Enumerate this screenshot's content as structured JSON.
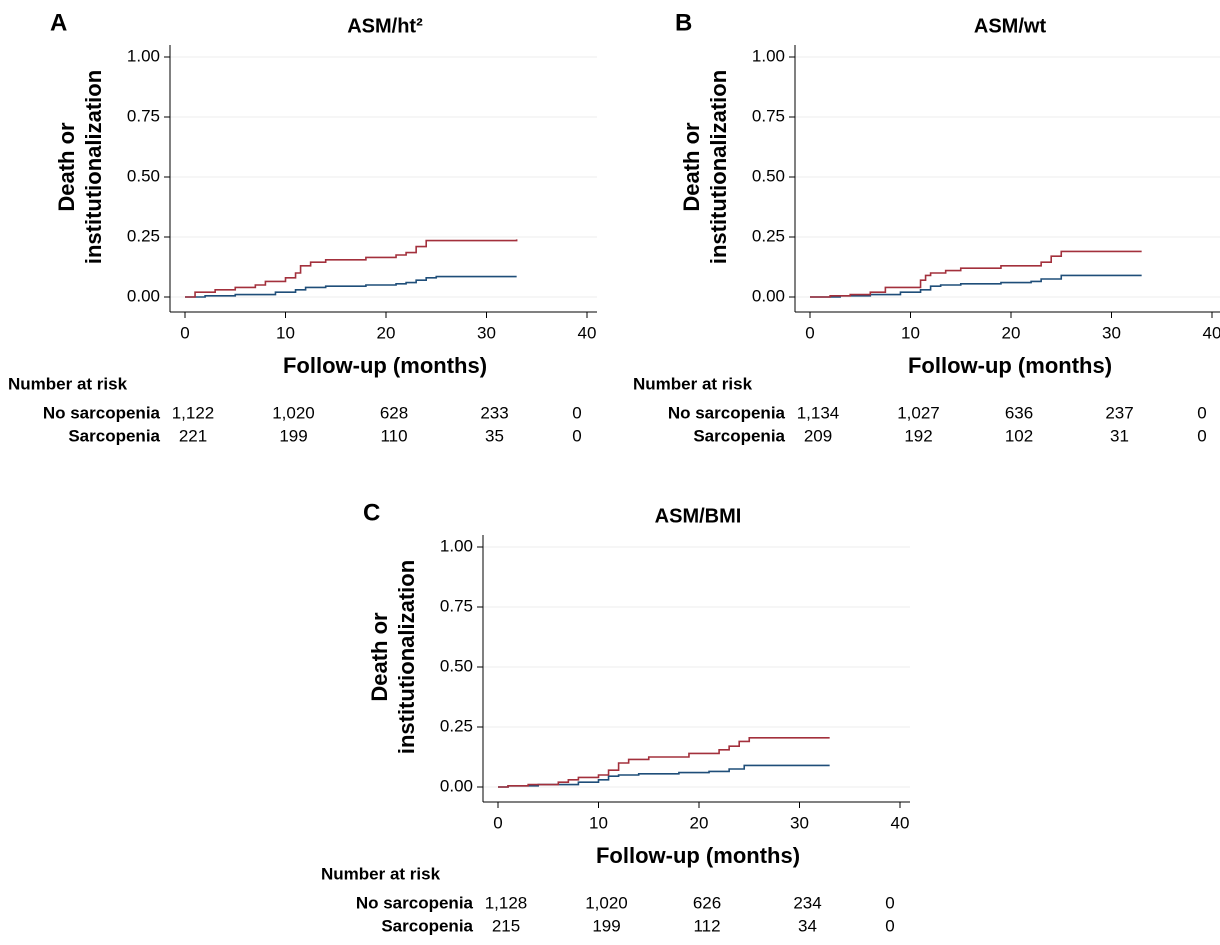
{
  "chart_data": [
    {
      "type": "line",
      "step": "post",
      "panel_label": "A",
      "title": "ASM/ht²",
      "ylabel": [
        "Death or",
        "institutionalization"
      ],
      "xlabel": "Follow-up (months)",
      "xlim": [
        0,
        40
      ],
      "xticks": [
        0,
        10,
        20,
        30,
        40
      ],
      "ylim": [
        0,
        1
      ],
      "yticks": [
        {
          "value": 0,
          "label": "0.00"
        },
        {
          "value": 0.25,
          "label": "0.25"
        },
        {
          "value": 0.5,
          "label": "0.50"
        },
        {
          "value": 0.75,
          "label": "0.75"
        },
        {
          "value": 1,
          "label": "1.00"
        }
      ],
      "grid": true,
      "risk_title": "Number at risk",
      "series": [
        {
          "name": "No sarcopenia",
          "color": "#1f4e79",
          "x": [
            0,
            2,
            5,
            9,
            11,
            12,
            14,
            18,
            21,
            22,
            23,
            24,
            25,
            33
          ],
          "values": [
            0,
            0.005,
            0.01,
            0.02,
            0.03,
            0.04,
            0.045,
            0.05,
            0.055,
            0.06,
            0.07,
            0.08,
            0.085,
            0.085
          ],
          "at_risk": [
            1122,
            1020,
            628,
            233,
            0
          ],
          "at_risk_labels": [
            "1,122",
            "1,020",
            "628",
            "233",
            "0"
          ]
        },
        {
          "name": "Sarcopenia",
          "color": "#a3303c",
          "x": [
            0,
            1,
            3,
            5,
            7,
            8,
            10,
            11,
            11.5,
            12.5,
            14,
            18,
            21,
            22,
            23,
            24,
            33
          ],
          "values": [
            0,
            0.02,
            0.03,
            0.04,
            0.05,
            0.065,
            0.08,
            0.1,
            0.13,
            0.145,
            0.155,
            0.165,
            0.175,
            0.185,
            0.21,
            0.235,
            0.24
          ],
          "at_risk": [
            221,
            199,
            110,
            35,
            0
          ]
        }
      ]
    },
    {
      "type": "line",
      "step": "post",
      "panel_label": "B",
      "title": "ASM/wt",
      "ylabel": [
        "Death or",
        "institutionalization"
      ],
      "xlabel": "Follow-up (months)",
      "xlim": [
        0,
        40
      ],
      "xticks": [
        0,
        10,
        20,
        30,
        40
      ],
      "ylim": [
        0,
        1
      ],
      "yticks": [
        {
          "value": 0,
          "label": "0.00"
        },
        {
          "value": 0.25,
          "label": "0.25"
        },
        {
          "value": 0.5,
          "label": "0.50"
        },
        {
          "value": 0.75,
          "label": "0.75"
        },
        {
          "value": 1,
          "label": "1.00"
        }
      ],
      "grid": true,
      "risk_title": "Number at risk",
      "series": [
        {
          "name": "No sarcopenia",
          "color": "#1f4e79",
          "x": [
            0,
            3,
            6,
            9,
            11,
            12,
            13,
            15,
            19,
            22,
            23,
            25,
            33
          ],
          "values": [
            0,
            0.005,
            0.01,
            0.02,
            0.03,
            0.045,
            0.05,
            0.055,
            0.06,
            0.065,
            0.075,
            0.09,
            0.09
          ],
          "at_risk": [
            1134,
            1027,
            636,
            237,
            0
          ],
          "at_risk_labels": [
            "1,134",
            "1,027",
            "636",
            "237",
            "0"
          ]
        },
        {
          "name": "Sarcopenia",
          "color": "#a3303c",
          "x": [
            0,
            2,
            4,
            6,
            7.5,
            11,
            11.5,
            12,
            13.5,
            15,
            19,
            23,
            24,
            25,
            33
          ],
          "values": [
            0,
            0.005,
            0.01,
            0.02,
            0.04,
            0.07,
            0.09,
            0.1,
            0.11,
            0.12,
            0.13,
            0.145,
            0.17,
            0.19,
            0.19
          ],
          "at_risk": [
            209,
            192,
            102,
            31,
            0
          ]
        }
      ]
    },
    {
      "type": "line",
      "step": "post",
      "panel_label": "C",
      "title": "ASM/BMI",
      "ylabel": [
        "Death or",
        "institutionalization"
      ],
      "xlabel": "Follow-up (months)",
      "xlim": [
        0,
        40
      ],
      "xticks": [
        0,
        10,
        20,
        30,
        40
      ],
      "ylim": [
        0,
        1
      ],
      "yticks": [
        {
          "value": 0,
          "label": "0.00"
        },
        {
          "value": 0.25,
          "label": "0.25"
        },
        {
          "value": 0.5,
          "label": "0.50"
        },
        {
          "value": 0.75,
          "label": "0.75"
        },
        {
          "value": 1,
          "label": "1.00"
        }
      ],
      "grid": true,
      "risk_title": "Number at risk",
      "series": [
        {
          "name": "No sarcopenia",
          "color": "#1f4e79",
          "x": [
            0,
            1,
            4,
            8,
            10,
            11,
            12,
            14,
            18,
            21,
            23,
            24.5,
            33
          ],
          "values": [
            0,
            0.005,
            0.01,
            0.02,
            0.03,
            0.045,
            0.05,
            0.055,
            0.06,
            0.065,
            0.075,
            0.09,
            0.09
          ],
          "at_risk": [
            1128,
            1020,
            626,
            234,
            0
          ],
          "at_risk_labels": [
            "1,128",
            "1,020",
            "626",
            "234",
            "0"
          ]
        },
        {
          "name": "Sarcopenia",
          "color": "#a3303c",
          "x": [
            0,
            1,
            3,
            6,
            7,
            8,
            10,
            11,
            12,
            13,
            15,
            19,
            22,
            23,
            24,
            25,
            33
          ],
          "values": [
            0,
            0.005,
            0.01,
            0.02,
            0.03,
            0.04,
            0.05,
            0.07,
            0.1,
            0.115,
            0.125,
            0.14,
            0.155,
            0.17,
            0.19,
            0.205,
            0.205
          ],
          "at_risk": [
            215,
            199,
            112,
            34,
            0
          ]
        }
      ]
    }
  ]
}
